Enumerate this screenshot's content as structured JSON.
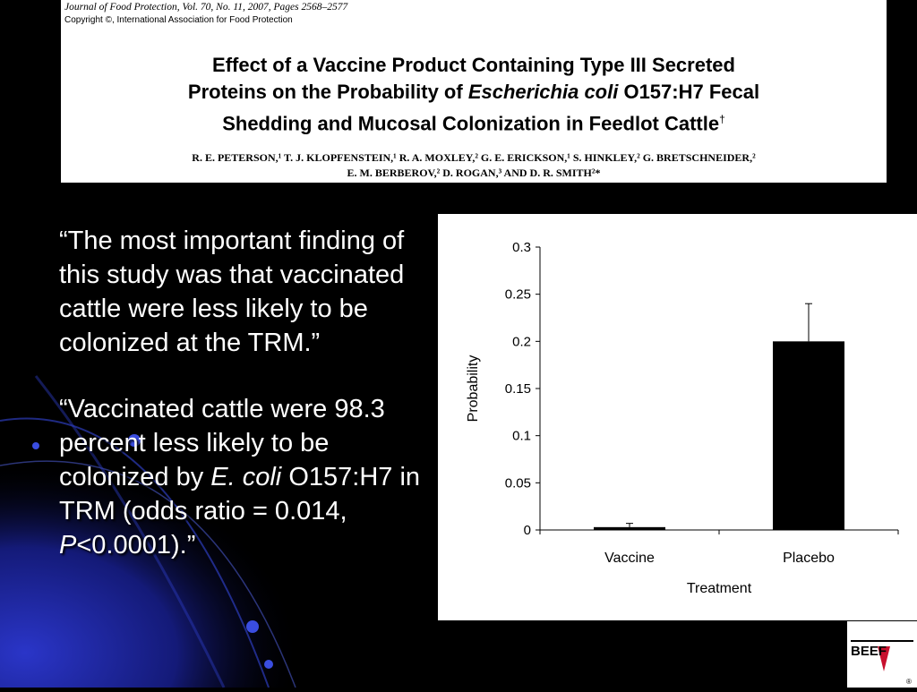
{
  "paper": {
    "journal": "Journal of Food Protection, Vol. 70, No. 11, 2007, Pages 2568–2577",
    "copyright": "Copyright ©, International Association for Food Protection",
    "title_line1": "Effect of a Vaccine Product Containing Type III Secreted",
    "title_line2_pre": "Proteins on the Probability of ",
    "title_line2_italic": "Escherichia coli",
    "title_line2_post": " O157:H7 Fecal",
    "title_line3": "Shedding and Mucosal Colonization in Feedlot Cattle",
    "title_dagger": "†",
    "authors_line1": "R. E. PETERSON,¹ T. J. KLOPFENSTEIN,¹ R. A. MOXLEY,² G. E. ERICKSON,¹ S. HINKLEY,² G. BRETSCHNEIDER,²",
    "authors_line2": "E. M. BERBEROV,² D. ROGAN,³ AND D. R. SMITH²*"
  },
  "quote1": "“The most important finding of this study was that vaccinated cattle were less likely to be colonized at the TRM.”",
  "quote2": {
    "part1": "“Vaccinated cattle were 98.3 percent less likely to be colonized by ",
    "italic1": "E. coli",
    "part2": " O157:H7 in TRM (odds ratio = 0.014, ",
    "italic2": "P",
    "part3": "<0.0001).”"
  },
  "logo": {
    "text": "BEEF",
    "mark": "®",
    "accent": "#c8102e"
  },
  "chart_data": {
    "type": "bar",
    "categories": [
      "Vaccine",
      "Placebo"
    ],
    "values": [
      0.003,
      0.2
    ],
    "error_upper": [
      0.007,
      0.24
    ],
    "xlabel": "Treatment",
    "ylabel": "Probability",
    "ylim": [
      0,
      0.3
    ],
    "yticks": [
      0,
      0.05,
      0.1,
      0.15,
      0.2,
      0.25,
      0.3
    ],
    "ytick_labels": [
      "0",
      "0.05",
      "0.1",
      "0.15",
      "0.2",
      "0.25",
      "0.3"
    ],
    "bar_color": "#000000",
    "grid": false
  }
}
